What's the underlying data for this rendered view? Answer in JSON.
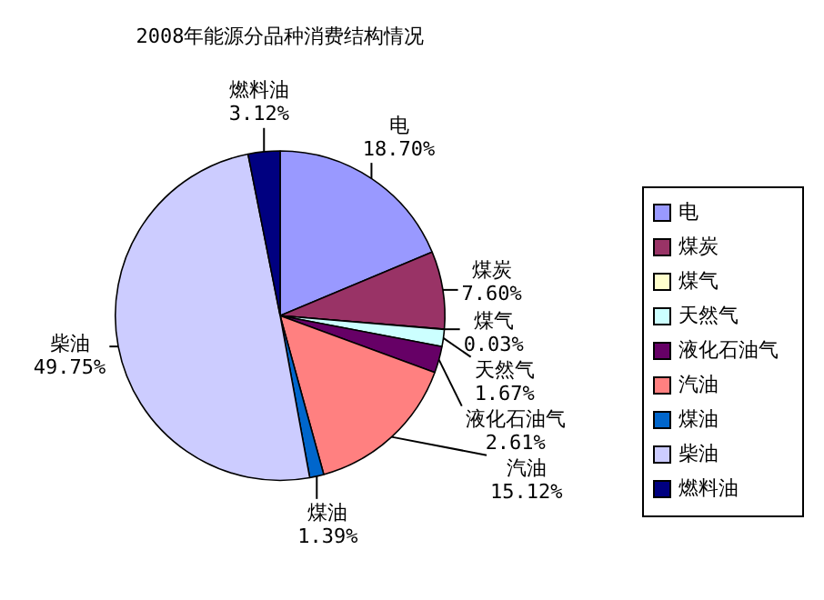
{
  "chart_data": {
    "type": "pie",
    "title": "2008年能源分品种消费结构情况",
    "categories": [
      "电",
      "煤炭",
      "煤气",
      "天然气",
      "液化石油气",
      "汽油",
      "煤油",
      "柴油",
      "燃料油"
    ],
    "values": [
      18.7,
      7.6,
      0.03,
      1.67,
      2.61,
      15.12,
      1.39,
      49.75,
      3.12
    ],
    "value_labels": [
      "18.70%",
      "7.60%",
      "0.03%",
      "1.67%",
      "2.61%",
      "15.12%",
      "1.39%",
      "49.75%",
      "3.12%"
    ],
    "colors": [
      "#9999ff",
      "#993366",
      "#ffffcc",
      "#ccffff",
      "#660066",
      "#ff8080",
      "#0066cc",
      "#ccccff",
      "#000080"
    ],
    "legend": "right"
  }
}
